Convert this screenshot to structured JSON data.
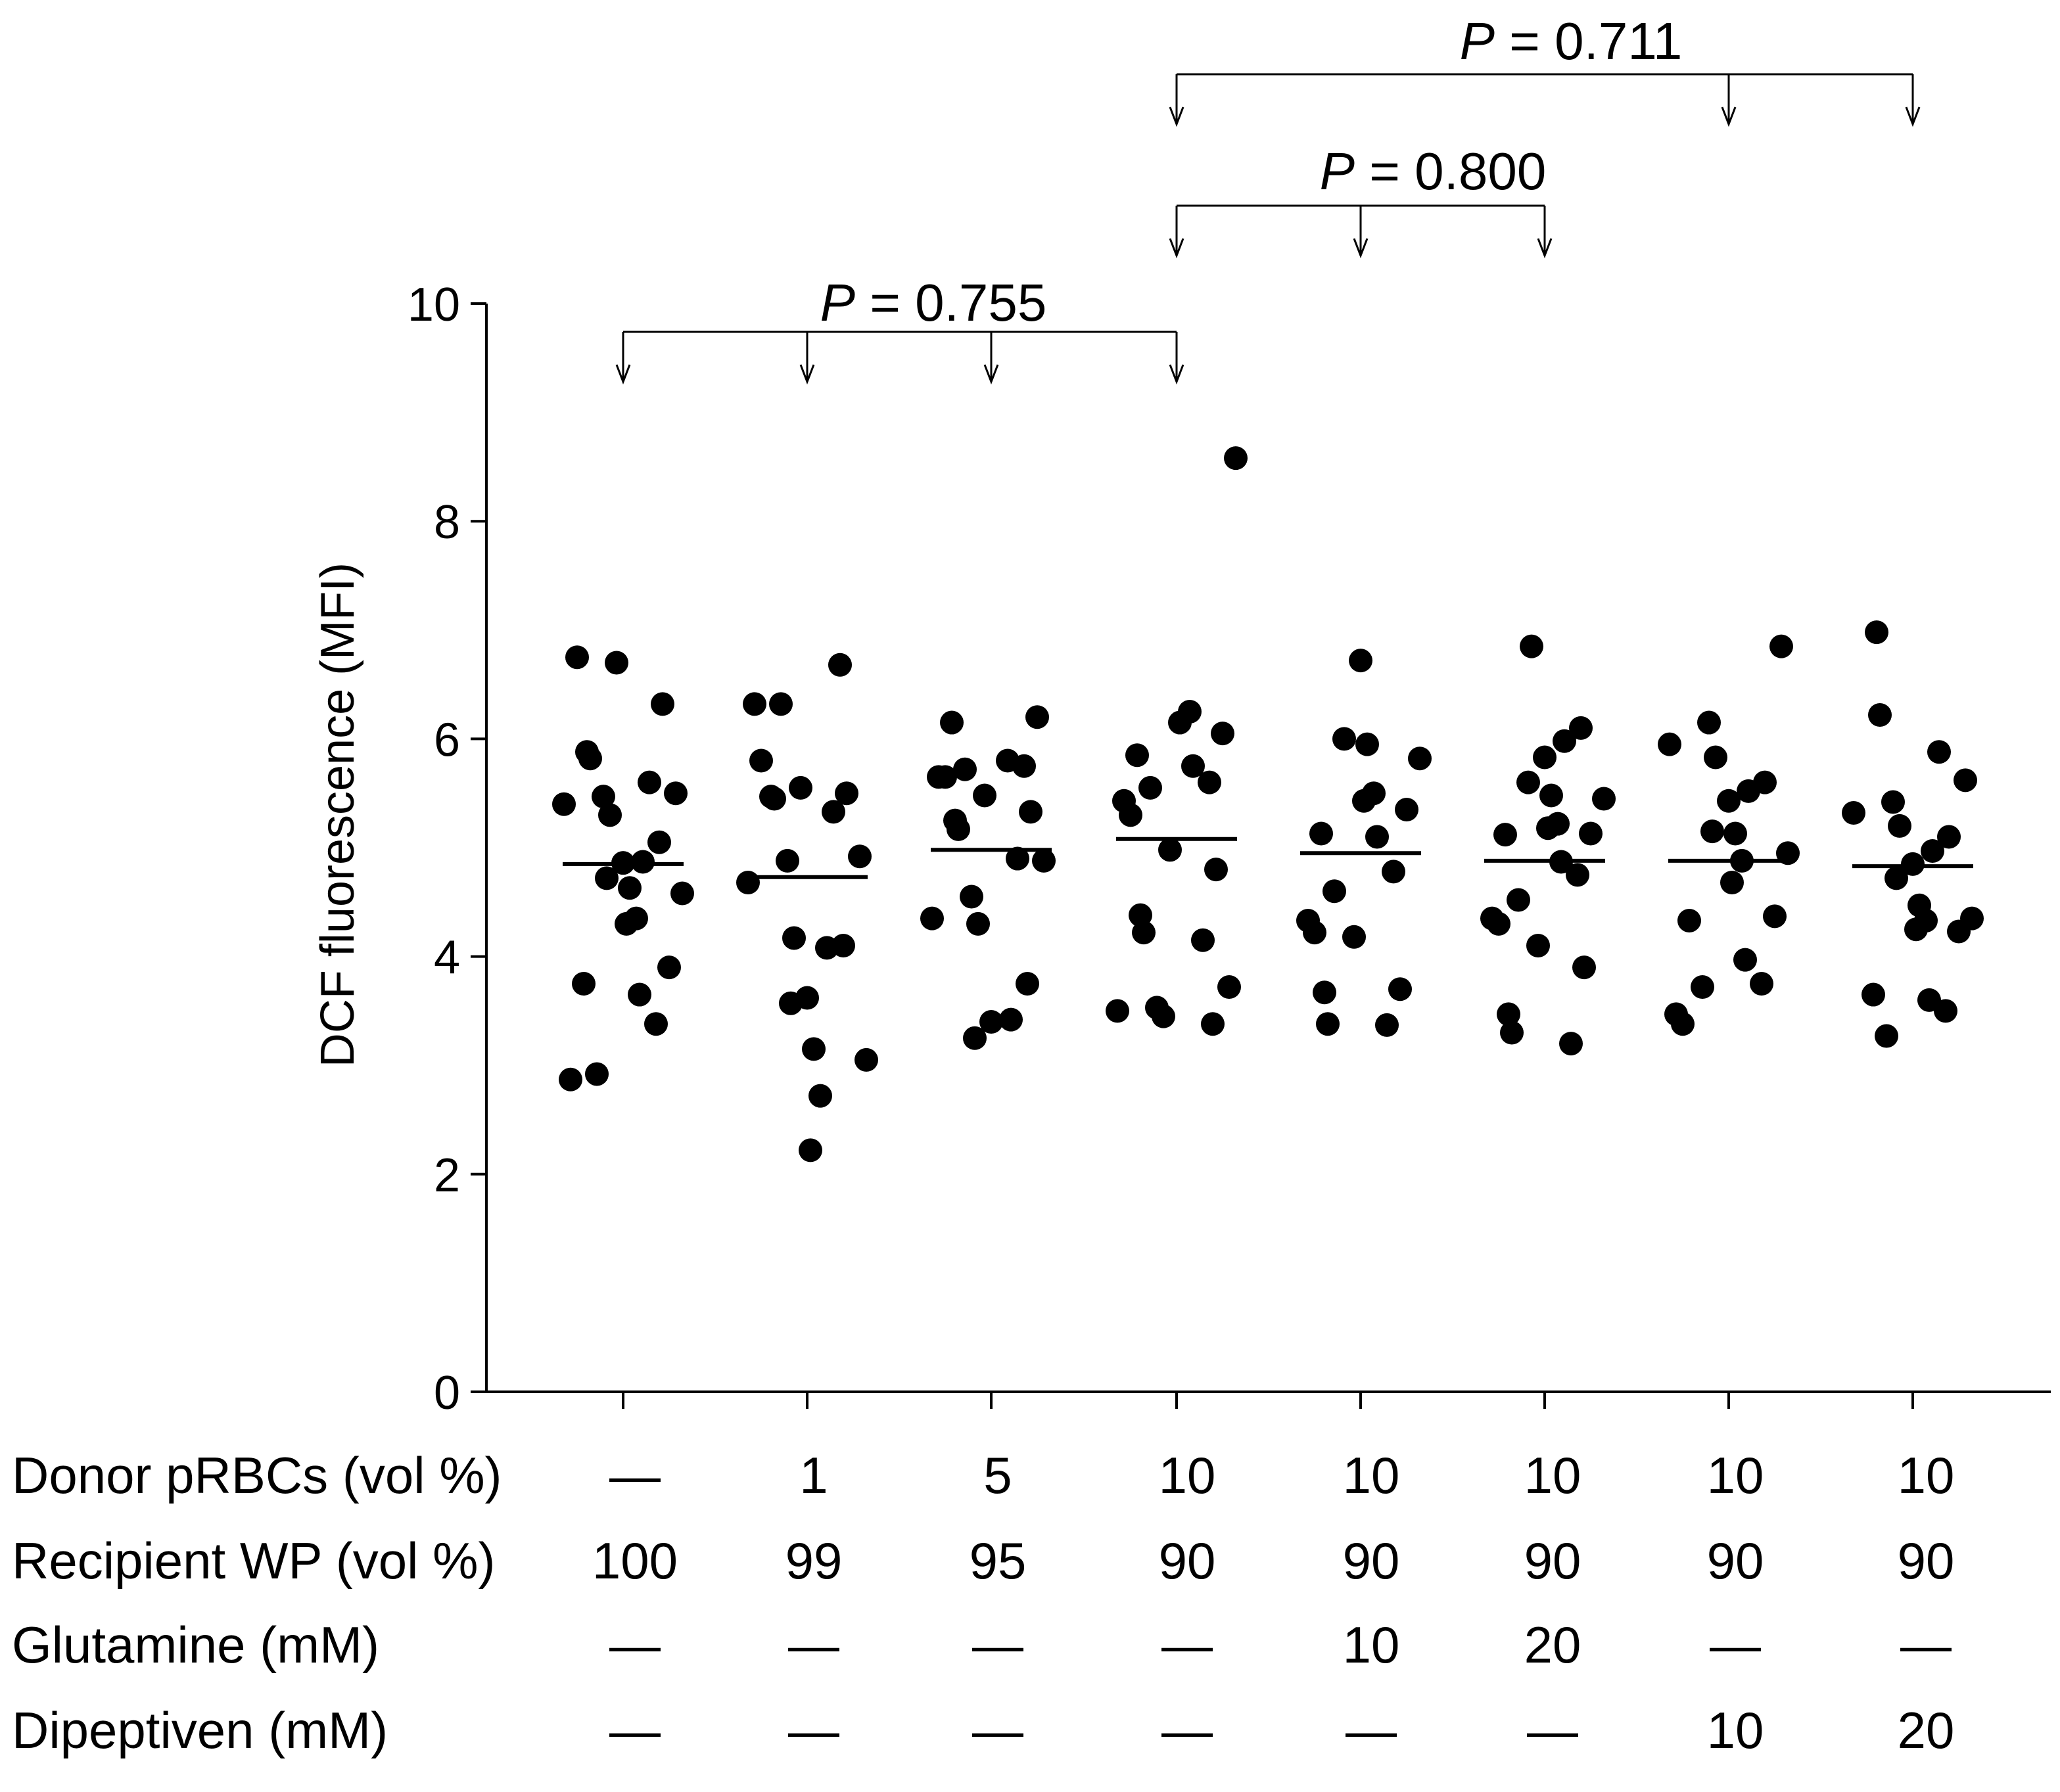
{
  "chart_data": {
    "type": "scatter",
    "title": "",
    "xlabel": "",
    "ylabel": "DCF fluorescence (MFI)",
    "ylim": [
      0,
      10
    ],
    "y_ticks": [
      "0",
      "2",
      "4",
      "6",
      "8",
      "10"
    ],
    "groups": [
      {
        "points": [
          6.75,
          6.7,
          6.32,
          5.88,
          5.82,
          5.6,
          5.5,
          5.47,
          5.4,
          5.3,
          5.05,
          4.87,
          4.86,
          4.72,
          4.63,
          4.58,
          4.35,
          4.3,
          3.9,
          3.75,
          3.65,
          3.38,
          2.92,
          2.87
        ],
        "mean": 4.85
      },
      {
        "points": [
          6.68,
          6.32,
          6.32,
          5.8,
          5.55,
          5.5,
          5.47,
          5.45,
          5.33,
          4.92,
          4.88,
          4.68,
          4.17,
          4.1,
          4.08,
          3.62,
          3.57,
          3.15,
          3.05,
          2.72,
          2.22
        ],
        "mean": 4.73
      },
      {
        "points": [
          6.2,
          6.15,
          5.8,
          5.75,
          5.72,
          5.65,
          5.65,
          5.48,
          5.33,
          5.25,
          5.17,
          4.9,
          4.88,
          4.55,
          4.35,
          4.3,
          3.75,
          3.42,
          3.4,
          3.25
        ],
        "mean": 4.98
      },
      {
        "points": [
          8.58,
          6.25,
          6.15,
          6.05,
          5.85,
          5.75,
          5.6,
          5.55,
          5.43,
          5.3,
          4.98,
          4.8,
          4.38,
          4.22,
          4.15,
          3.72,
          3.53,
          3.5,
          3.45,
          3.38
        ],
        "mean": 5.08
      },
      {
        "points": [
          6.72,
          6.0,
          5.95,
          5.82,
          5.5,
          5.43,
          5.35,
          5.13,
          5.1,
          4.78,
          4.6,
          4.33,
          4.22,
          4.18,
          3.7,
          3.67,
          3.38,
          3.37
        ],
        "mean": 4.95
      },
      {
        "points": [
          6.85,
          6.1,
          5.98,
          5.83,
          5.6,
          5.48,
          5.45,
          5.22,
          5.18,
          5.13,
          5.12,
          4.87,
          4.75,
          4.52,
          4.35,
          4.3,
          4.1,
          3.9,
          3.47,
          3.3,
          3.2
        ],
        "mean": 4.88
      },
      {
        "points": [
          6.85,
          6.15,
          5.95,
          5.83,
          5.6,
          5.52,
          5.43,
          5.15,
          5.13,
          4.95,
          4.88,
          4.68,
          4.37,
          4.33,
          3.97,
          3.75,
          3.72,
          3.47,
          3.38
        ],
        "mean": 4.88
      },
      {
        "points": [
          6.98,
          6.22,
          5.88,
          5.62,
          5.42,
          5.32,
          5.2,
          5.1,
          4.97,
          4.85,
          4.72,
          4.47,
          4.35,
          4.33,
          4.25,
          4.23,
          3.65,
          3.6,
          3.5,
          3.27
        ],
        "mean": 4.83
      }
    ],
    "condition_rows": [
      {
        "label": "Donor pRBCs (vol %)",
        "values": [
          "—",
          "1",
          "5",
          "10",
          "10",
          "10",
          "10",
          "10"
        ]
      },
      {
        "label": "Recipient WP (vol %)",
        "values": [
          "100",
          "99",
          "95",
          "90",
          "90",
          "90",
          "90",
          "90"
        ]
      },
      {
        "label": "Glutamine (mM)",
        "values": [
          "—",
          "—",
          "—",
          "—",
          "10",
          "20",
          "—",
          "—"
        ]
      },
      {
        "label": "Dipeptiven (mM)",
        "values": [
          "—",
          "—",
          "—",
          "—",
          "—",
          "—",
          "10",
          "20"
        ]
      }
    ],
    "comparisons": [
      {
        "p_label": "P",
        "p_value": "= 0.755",
        "groups": [
          1,
          2,
          3,
          4
        ]
      },
      {
        "p_label": "P",
        "p_value": "= 0.800",
        "groups": [
          4,
          5,
          6
        ]
      },
      {
        "p_label": "P",
        "p_value": "= 0.711",
        "groups": [
          4,
          7,
          8
        ]
      }
    ]
  }
}
